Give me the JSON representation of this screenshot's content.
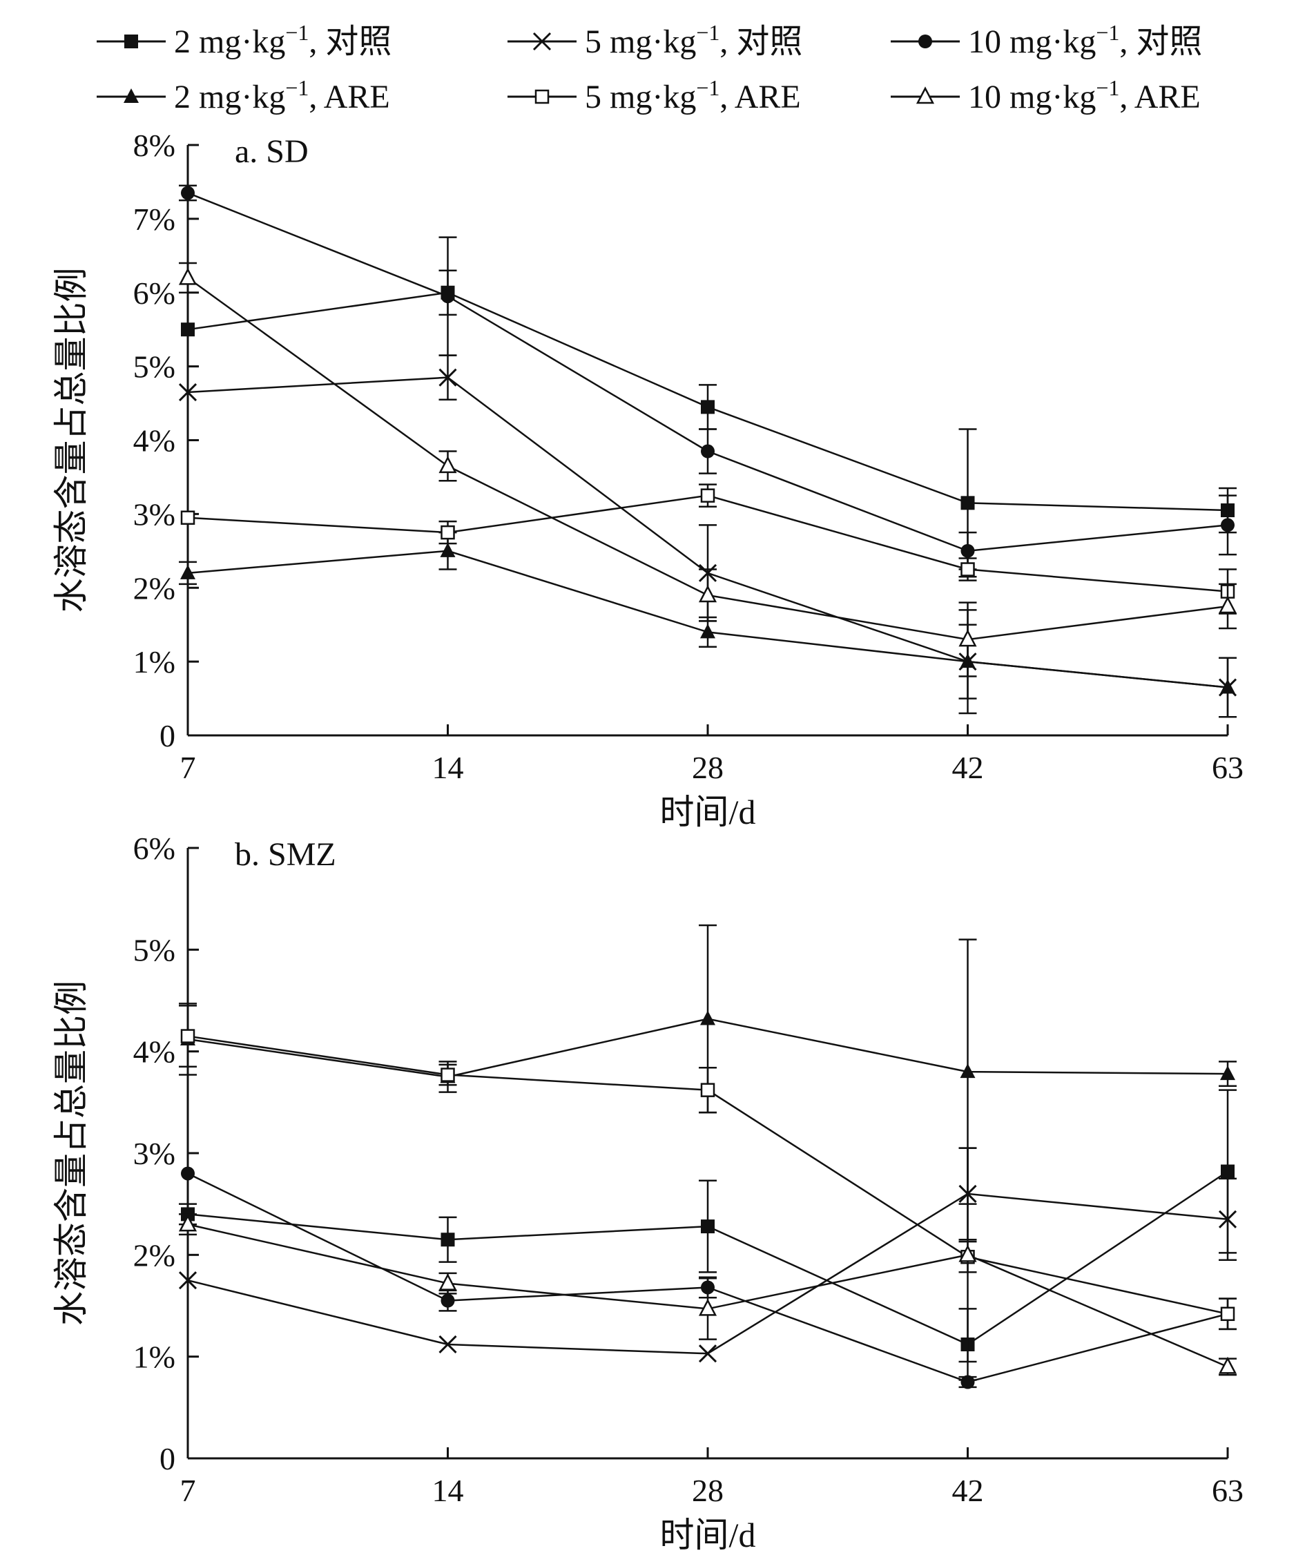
{
  "legend": [
    {
      "label": "2 mg·kg",
      "sup": "−1",
      "suffix": ", 对照",
      "marker": "square-filled"
    },
    {
      "label": "5 mg·kg",
      "sup": "−1",
      "suffix": ", 对照",
      "marker": "x"
    },
    {
      "label": "10 mg·kg",
      "sup": "−1",
      "suffix": ", 对照",
      "marker": "circle-filled"
    },
    {
      "label": "2 mg·kg",
      "sup": "−1",
      "suffix": ", ARE",
      "marker": "triangle-filled"
    },
    {
      "label": "5 mg·kg",
      "sup": "−1",
      "suffix": ", ARE",
      "marker": "square-open"
    },
    {
      "label": "10 mg·kg",
      "sup": "−1",
      "suffix": ", ARE",
      "marker": "triangle-open"
    }
  ],
  "chart_data": [
    {
      "type": "line",
      "title": "a. SD",
      "xlabel": "时间/d",
      "ylabel": "水溶态含量占总量比例",
      "categories": [
        "7",
        "14",
        "28",
        "42",
        "63"
      ],
      "ylim": [
        0,
        8
      ],
      "yticks": [
        "0",
        "1%",
        "2%",
        "3%",
        "4%",
        "5%",
        "6%",
        "7%",
        "8%"
      ],
      "series": [
        {
          "name": "2 mg·kg−1, 对照",
          "marker": "square-filled",
          "values": [
            5.5,
            6.0,
            4.45,
            3.15,
            3.05
          ],
          "errors": [
            0.0,
            0.3,
            0.3,
            1.0,
            0.3
          ]
        },
        {
          "name": "5 mg·kg−1, 对照",
          "marker": "x",
          "values": [
            4.65,
            4.85,
            2.2,
            1.0,
            0.65
          ],
          "errors": [
            0.0,
            0.3,
            0.65,
            0.5,
            0.4
          ]
        },
        {
          "name": "10 mg·kg−1, 对照",
          "marker": "circle-filled",
          "values": [
            7.35,
            5.95,
            3.85,
            2.5,
            2.85
          ],
          "errors": [
            0.1,
            0.8,
            0.3,
            0.25,
            0.4
          ]
        },
        {
          "name": "2 mg·kg−1, ARE",
          "marker": "triangle-filled",
          "values": [
            2.2,
            2.5,
            1.4,
            1.0,
            0.65
          ],
          "errors": [
            0.15,
            0.25,
            0.2,
            0.7,
            0.4
          ]
        },
        {
          "name": "5 mg·kg−1, ARE",
          "marker": "square-open",
          "values": [
            2.95,
            2.75,
            3.25,
            2.25,
            1.95
          ],
          "errors": [
            0.0,
            0.15,
            0.15,
            0.15,
            0.3
          ]
        },
        {
          "name": "10 mg·kg−1, ARE",
          "marker": "triangle-open",
          "values": [
            6.2,
            3.65,
            1.9,
            1.3,
            1.75
          ],
          "errors": [
            0.2,
            0.2,
            0.35,
            0.5,
            0.3
          ]
        }
      ]
    },
    {
      "type": "line",
      "title": "b. SMZ",
      "xlabel": "时间/d",
      "ylabel": "水溶态含量占总量比例",
      "categories": [
        "7",
        "14",
        "28",
        "42",
        "63"
      ],
      "ylim": [
        0,
        6
      ],
      "yticks": [
        "0",
        "1%",
        "2%",
        "3%",
        "4%",
        "5%",
        "6%"
      ],
      "series": [
        {
          "name": "2 mg·kg−1, 对照",
          "marker": "square-filled",
          "values": [
            2.4,
            2.15,
            2.28,
            1.12,
            2.82
          ],
          "errors": [
            0.1,
            0.22,
            0.45,
            0.35,
            0.8
          ]
        },
        {
          "name": "5 mg·kg−1, 对照",
          "marker": "x",
          "values": [
            1.75,
            1.12,
            1.03,
            2.6,
            2.35
          ],
          "errors": [
            0.0,
            0.0,
            0.0,
            0.45,
            0.4
          ]
        },
        {
          "name": "10 mg·kg−1, 对照",
          "marker": "circle-filled",
          "values": [
            2.8,
            1.55,
            1.68,
            0.75,
            1.42
          ],
          "errors": [
            0.0,
            0.1,
            0.1,
            0.05,
            0.15
          ]
        },
        {
          "name": "2 mg·kg−1, ARE",
          "marker": "triangle-filled",
          "values": [
            4.12,
            3.75,
            4.32,
            3.8,
            3.78
          ],
          "errors": [
            0.35,
            0.15,
            0.92,
            1.3,
            0.12
          ]
        },
        {
          "name": "5 mg·kg−1, ARE",
          "marker": "square-open",
          "values": [
            4.15,
            3.77,
            3.62,
            1.98,
            1.42
          ],
          "errors": [
            0.3,
            0.1,
            0.22,
            0.15,
            0.15
          ]
        },
        {
          "name": "10 mg·kg−1, ARE",
          "marker": "triangle-open",
          "values": [
            2.3,
            1.72,
            1.47,
            2.0,
            0.9
          ],
          "errors": [
            0.1,
            0.1,
            0.3,
            1.05,
            0.08
          ]
        }
      ]
    }
  ]
}
